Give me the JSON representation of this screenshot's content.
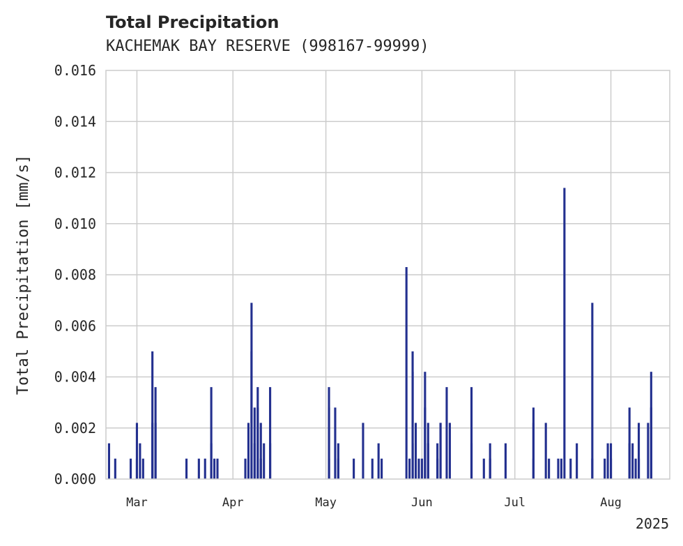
{
  "chart_data": {
    "type": "bar",
    "title": "Total Precipitation",
    "subtitle": "KACHEMAK BAY RESERVE (998167-99999)",
    "ylabel": "Total Precipitation [mm/s]",
    "xlabel": "",
    "year_label": "2025",
    "ylim": [
      0,
      0.016
    ],
    "yticks": [
      "0.000",
      "0.002",
      "0.004",
      "0.006",
      "0.008",
      "0.010",
      "0.012",
      "0.014",
      "0.016"
    ],
    "xlim": [
      "2025-02-19",
      "2025-08-20"
    ],
    "xticks": [
      {
        "date": "2025-03-01",
        "label": "Mar"
      },
      {
        "date": "2025-04-01",
        "label": "Apr"
      },
      {
        "date": "2025-05-01",
        "label": "May"
      },
      {
        "date": "2025-06-01",
        "label": "Jun"
      },
      {
        "date": "2025-07-01",
        "label": "Jul"
      },
      {
        "date": "2025-08-01",
        "label": "Aug"
      }
    ],
    "grid": true,
    "bar_color": "#23308f",
    "series": [
      {
        "values": [
          [
            "2025-02-20",
            0.0014
          ],
          [
            "2025-02-22",
            0.0008
          ],
          [
            "2025-02-27",
            0.0008
          ],
          [
            "2025-03-01",
            0.0008
          ],
          [
            "2025-03-01",
            0.0022
          ],
          [
            "2025-03-02",
            0.0014
          ],
          [
            "2025-03-03",
            0.0008
          ],
          [
            "2025-03-06",
            0.0022
          ],
          [
            "2025-03-06",
            0.005
          ],
          [
            "2025-03-07",
            0.0036
          ],
          [
            "2025-03-07",
            0.0022
          ],
          [
            "2025-03-17",
            0.0008
          ],
          [
            "2025-03-21",
            0.0008
          ],
          [
            "2025-03-23",
            0.0008
          ],
          [
            "2025-03-25",
            0.0036
          ],
          [
            "2025-03-25",
            0.0014
          ],
          [
            "2025-03-26",
            0.0008
          ],
          [
            "2025-03-27",
            0.0008
          ],
          [
            "2025-04-05",
            0.0008
          ],
          [
            "2025-04-06",
            0.0008
          ],
          [
            "2025-04-06",
            0.0022
          ],
          [
            "2025-04-07",
            0.0069
          ],
          [
            "2025-04-07",
            0.005
          ],
          [
            "2025-04-08",
            0.0028
          ],
          [
            "2025-04-08",
            0.0014
          ],
          [
            "2025-04-09",
            0.0028
          ],
          [
            "2025-04-09",
            0.0036
          ],
          [
            "2025-04-10",
            0.0022
          ],
          [
            "2025-04-10",
            0.0008
          ],
          [
            "2025-04-11",
            0.0014
          ],
          [
            "2025-04-13",
            0.0036
          ],
          [
            "2025-04-13",
            0.0014
          ],
          [
            "2025-05-02",
            0.0008
          ],
          [
            "2025-05-02",
            0.0028
          ],
          [
            "2025-05-02",
            0.0036
          ],
          [
            "2025-05-04",
            0.0028
          ],
          [
            "2025-05-05",
            0.0014
          ],
          [
            "2025-05-05",
            0.0008
          ],
          [
            "2025-05-10",
            0.0008
          ],
          [
            "2025-05-13",
            0.0022
          ],
          [
            "2025-05-16",
            0.0008
          ],
          [
            "2025-05-18",
            0.0014
          ],
          [
            "2025-05-19",
            0.0008
          ],
          [
            "2025-05-27",
            0.0083
          ],
          [
            "2025-05-28",
            0.0008
          ],
          [
            "2025-05-29",
            0.0014
          ],
          [
            "2025-05-29",
            0.005
          ],
          [
            "2025-05-29",
            0.0042
          ],
          [
            "2025-05-30",
            0.0022
          ],
          [
            "2025-05-31",
            0.0008
          ],
          [
            "2025-06-01",
            0.0008
          ],
          [
            "2025-06-02",
            0.0042
          ],
          [
            "2025-06-02",
            0.0028
          ],
          [
            "2025-06-03",
            0.0022
          ],
          [
            "2025-06-03",
            0.0014
          ],
          [
            "2025-06-06",
            0.0008
          ],
          [
            "2025-06-06",
            0.0014
          ],
          [
            "2025-06-07",
            0.0022
          ],
          [
            "2025-06-07",
            0.0022
          ],
          [
            "2025-06-09",
            0.0036
          ],
          [
            "2025-06-10",
            0.0022
          ],
          [
            "2025-06-17",
            0.0036
          ],
          [
            "2025-06-17",
            0.0014
          ],
          [
            "2025-06-21",
            0.0008
          ],
          [
            "2025-06-23",
            0.0014
          ],
          [
            "2025-06-23",
            0.0008
          ],
          [
            "2025-06-28",
            0.0014
          ],
          [
            "2025-07-07",
            0.0008
          ],
          [
            "2025-07-07",
            0.0022
          ],
          [
            "2025-07-07",
            0.0028
          ],
          [
            "2025-07-11",
            0.0022
          ],
          [
            "2025-07-12",
            0.0008
          ],
          [
            "2025-07-15",
            0.0008
          ],
          [
            "2025-07-16",
            0.0008
          ],
          [
            "2025-07-17",
            0.0114
          ],
          [
            "2025-07-19",
            0.0008
          ],
          [
            "2025-07-21",
            0.0014
          ],
          [
            "2025-07-26",
            0.0069
          ],
          [
            "2025-07-26",
            0.0008
          ],
          [
            "2025-07-30",
            0.0008
          ],
          [
            "2025-07-31",
            0.0014
          ],
          [
            "2025-08-01",
            0.0014
          ],
          [
            "2025-08-01",
            0.0008
          ],
          [
            "2025-08-07",
            0.0028
          ],
          [
            "2025-08-07",
            0.0014
          ],
          [
            "2025-08-08",
            0.0014
          ],
          [
            "2025-08-09",
            0.0008
          ],
          [
            "2025-08-10",
            0.0022
          ],
          [
            "2025-08-10",
            0.0008
          ],
          [
            "2025-08-13",
            0.0022
          ],
          [
            "2025-08-14",
            0.0042
          ],
          [
            "2025-08-14",
            0.0028
          ]
        ]
      }
    ]
  }
}
